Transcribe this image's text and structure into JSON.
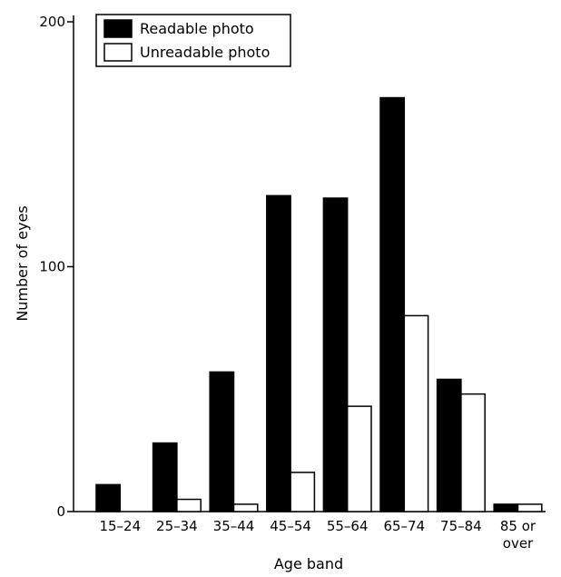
{
  "chart_data": {
    "type": "bar",
    "title": "",
    "xlabel": "Age band",
    "ylabel": "Number of eyes",
    "ylim": [
      0,
      200
    ],
    "yticks": [
      0,
      100,
      200
    ],
    "categories": [
      "15–24",
      "25–34",
      "35–44",
      "45–54",
      "55–64",
      "65–74",
      "75–84",
      "85 or over"
    ],
    "category_lines": [
      [
        "15–24"
      ],
      [
        "25–34"
      ],
      [
        "35–44"
      ],
      [
        "45–54"
      ],
      [
        "55–64"
      ],
      [
        "65–74"
      ],
      [
        "75–84"
      ],
      [
        "85 or",
        "over"
      ]
    ],
    "series": [
      {
        "name": "Readable photo",
        "color": "#000000",
        "values": [
          11,
          28,
          57,
          129,
          128,
          169,
          54,
          3
        ]
      },
      {
        "name": "Unreadable photo",
        "color": "#ffffff",
        "values": [
          0,
          5,
          3,
          16,
          43,
          80,
          48,
          3
        ]
      }
    ],
    "legend": "top-left",
    "grid": false
  }
}
